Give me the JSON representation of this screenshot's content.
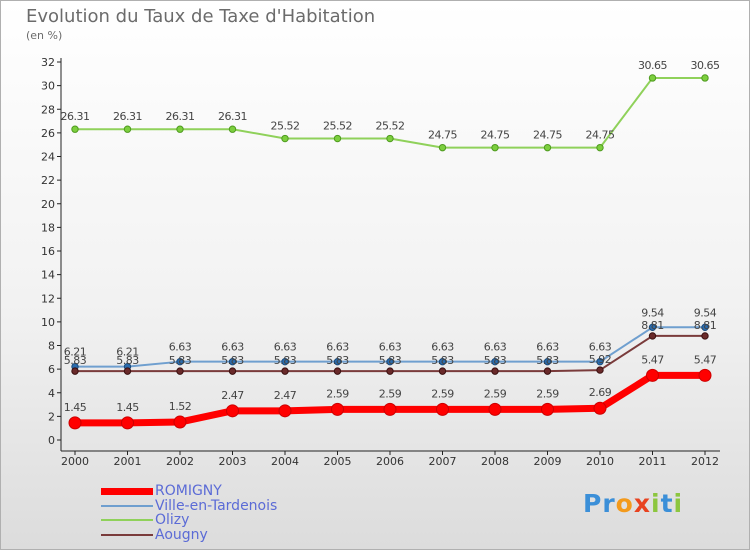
{
  "chart_data": {
    "type": "line",
    "title": "Evolution du Taux de Taxe d'Habitation",
    "subtitle": "(en %)",
    "categories": [
      "2000",
      "2001",
      "2002",
      "2003",
      "2004",
      "2005",
      "2006",
      "2007",
      "2008",
      "2009",
      "2010",
      "2011",
      "2012"
    ],
    "ylim": [
      0,
      32
    ],
    "yticks": [
      0,
      2,
      4,
      6,
      8,
      10,
      12,
      14,
      16,
      18,
      20,
      22,
      24,
      26,
      28,
      30,
      32
    ],
    "grid": false,
    "legend_position": "bottom-left",
    "series": [
      {
        "name": "ROMIGNY",
        "color": "#ff0000",
        "values": [
          1.45,
          1.45,
          1.52,
          2.47,
          2.47,
          2.59,
          2.59,
          2.59,
          2.59,
          2.59,
          2.69,
          5.47,
          5.47
        ],
        "labels": [
          "1.45",
          "1.45",
          "1.52",
          "2.47",
          "2.47",
          "2.59",
          "2.59",
          "2.59",
          "2.59",
          "2.59",
          "2.69",
          "5.47",
          "5.47"
        ]
      },
      {
        "name": "Ville-en-Tardenois",
        "color": "#6f9fcf",
        "values": [
          6.21,
          6.21,
          6.63,
          6.63,
          6.63,
          6.63,
          6.63,
          6.63,
          6.63,
          6.63,
          6.63,
          9.54,
          9.54
        ],
        "labels": [
          "6.21",
          "6.21",
          "6.63",
          "6.63",
          "6.63",
          "6.63",
          "6.63",
          "6.63",
          "6.63",
          "6.63",
          "6.63",
          "9.54",
          "9.54"
        ]
      },
      {
        "name": "Olizy",
        "color": "#8fd15a",
        "values": [
          26.31,
          26.31,
          26.31,
          26.31,
          25.52,
          25.52,
          25.52,
          24.75,
          24.75,
          24.75,
          24.75,
          30.65,
          30.65
        ],
        "labels": [
          "26.31",
          "26.31",
          "26.31",
          "26.31",
          "25.52",
          "25.52",
          "25.52",
          "24.75",
          "24.75",
          "24.75",
          "24.75",
          "30.65",
          "30.65"
        ]
      },
      {
        "name": "Aougny",
        "color": "#7a3b3b",
        "values": [
          5.83,
          5.83,
          5.83,
          5.83,
          5.83,
          5.83,
          5.83,
          5.83,
          5.83,
          5.83,
          5.92,
          8.81,
          8.81
        ],
        "labels": [
          "5.83",
          "5.83",
          "5.83",
          "5.83",
          "5.83",
          "5.83",
          "5.83",
          "5.83",
          "5.83",
          "5.83",
          "5.92",
          "8.81",
          "8.81"
        ]
      }
    ]
  },
  "brand": {
    "logo_letters": [
      {
        "char": "P",
        "color": "#3b8fd8"
      },
      {
        "char": "r",
        "color": "#3b8fd8"
      },
      {
        "char": "o",
        "color": "#f39a1c"
      },
      {
        "char": "x",
        "color": "#e8421f"
      },
      {
        "char": "i",
        "color": "#8cc63f"
      },
      {
        "char": "t",
        "color": "#3b8fd8"
      },
      {
        "char": "i",
        "color": "#8cc63f"
      }
    ]
  }
}
